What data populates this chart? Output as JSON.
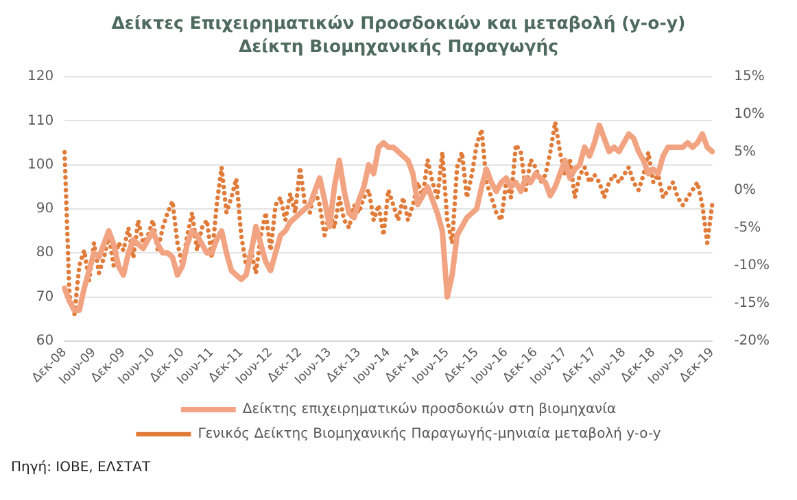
{
  "chart_data": {
    "type": "line",
    "title": "Δείκτες Επιχειρηματικών Προσδοκιών και μεταβολή (y-o-y) Δείκτη Βιομηχανικής Παραγωγής",
    "categories": [
      "Δεκ-08",
      null,
      null,
      null,
      null,
      null,
      "Ιουν-09",
      null,
      null,
      null,
      null,
      null,
      "Δεκ-09",
      null,
      null,
      null,
      null,
      null,
      "Ιουν-10",
      null,
      null,
      null,
      null,
      null,
      "Δεκ-10",
      null,
      null,
      null,
      null,
      null,
      "Ιουν-11",
      null,
      null,
      null,
      null,
      null,
      "Δεκ-11",
      null,
      null,
      null,
      null,
      null,
      "Ιουν-12",
      null,
      null,
      null,
      null,
      null,
      "Δεκ-12",
      null,
      null,
      null,
      null,
      null,
      "Ιουν-13",
      null,
      null,
      null,
      null,
      null,
      "Δεκ-13",
      null,
      null,
      null,
      null,
      null,
      "Ιουν-14",
      null,
      null,
      null,
      null,
      null,
      "Δεκ-14",
      null,
      null,
      null,
      null,
      null,
      "Ιουν-15",
      null,
      null,
      null,
      null,
      null,
      "Δεκ-15",
      null,
      null,
      null,
      null,
      null,
      "Ιουν-16",
      null,
      null,
      null,
      null,
      null,
      "Δεκ-16",
      null,
      null,
      null,
      null,
      null,
      "Ιουν-17",
      null,
      null,
      null,
      null,
      null,
      "Δεκ-17",
      null,
      null,
      null,
      null,
      null,
      "Ιουν-18",
      null,
      null,
      null,
      null,
      null,
      "Δεκ-18",
      null,
      null,
      null,
      null,
      null,
      "Ιουν-19",
      null,
      null,
      null,
      null,
      null,
      "Δεκ-19"
    ],
    "series": [
      {
        "name": "Δείκτης επιχειρηματικών προσδοκιών στη βιομηχανία",
        "color": "#f2a482",
        "line_style": "solid",
        "values": [
          72,
          69,
          67,
          67,
          72,
          76,
          80,
          79,
          82,
          85,
          82,
          77,
          75,
          80,
          83,
          82,
          81,
          83,
          85,
          82,
          80,
          80,
          79,
          75,
          77,
          82,
          85,
          84,
          82,
          80,
          80,
          83,
          85,
          80,
          76,
          75,
          74,
          75,
          80,
          86,
          82,
          78,
          76,
          80,
          84,
          85,
          87,
          88,
          89,
          90,
          91,
          94,
          97,
          92,
          86,
          95,
          101,
          94,
          89,
          88,
          92,
          95,
          100,
          98,
          104,
          105,
          104,
          104,
          103,
          102,
          101,
          98,
          91,
          93,
          95,
          92,
          89,
          85,
          70,
          75,
          84,
          86,
          88,
          89,
          90,
          95,
          99,
          96,
          94,
          96,
          97,
          95,
          96,
          94,
          97,
          96,
          98,
          97,
          96,
          93,
          95,
          98,
          101,
          97,
          99,
          100,
          104,
          102,
          105,
          109,
          106,
          103,
          104,
          103,
          105,
          107,
          106,
          103,
          101,
          98,
          99,
          98,
          102,
          104,
          104,
          104,
          104,
          105,
          104,
          105,
          107,
          104,
          103
        ]
      },
      {
        "name": "Γενικός Δείκτης Βιομηχανικής Παραγωγής-μηνιαία μεταβολή y-o-y",
        "color": "#e07b39",
        "line_style": "dotted",
        "axis": "y2",
        "values": [
          5,
          -14,
          -16.5,
          -10,
          -8,
          -12,
          -7,
          -11,
          -9,
          -6,
          -10,
          -7,
          -8,
          -5,
          -9,
          -4,
          -7,
          -6,
          -4,
          -8,
          -5,
          -3,
          -1.5,
          -7,
          -10,
          -6,
          -3,
          -8,
          -5,
          -4,
          -9,
          -2,
          3,
          -3,
          -1,
          1.5,
          -6,
          -10,
          -8,
          -11,
          -6,
          -3,
          -8,
          -2,
          -1,
          -4,
          -0.5,
          -3,
          3,
          -2,
          -3,
          0,
          -2,
          -6,
          -3,
          -5,
          -1,
          -4,
          -5,
          -2,
          -3,
          -1,
          0,
          -4,
          -2,
          -6,
          0,
          -2,
          -4,
          -1,
          -4,
          -2,
          1,
          -1,
          4,
          1,
          -1,
          5,
          -4,
          -7,
          3,
          5,
          -1,
          2,
          6,
          8,
          1,
          -1,
          -3,
          -4,
          1,
          -1,
          6,
          5,
          0,
          4,
          3,
          1,
          2,
          5,
          9,
          5,
          2,
          4,
          -1,
          2,
          3,
          1,
          2,
          1,
          -1,
          1,
          2,
          1,
          2,
          3,
          1,
          0,
          2,
          5,
          1,
          2,
          -1,
          0,
          1,
          -1,
          -2,
          -1,
          0,
          1,
          -2,
          -7,
          -2
        ]
      }
    ],
    "ylim": [
      60,
      120
    ],
    "yticks": [
      60,
      70,
      80,
      90,
      100,
      110,
      120
    ],
    "y2lim": [
      -20,
      15
    ],
    "y2ticks": [
      {
        "value": -20,
        "label": "-20%"
      },
      {
        "value": -15,
        "label": "-15%"
      },
      {
        "value": -10,
        "label": "-10%"
      },
      {
        "value": -5,
        "label": "-5%"
      },
      {
        "value": 0,
        "label": "0%"
      },
      {
        "value": 5,
        "label": "5%"
      },
      {
        "value": 10,
        "label": "10%"
      },
      {
        "value": 15,
        "label": "15%"
      }
    ],
    "grid": "y",
    "legend": "bottom",
    "marker": "none",
    "annotations": [
      "Πηγή: ΙΟΒΕ, ΕΛΣΤΑΤ"
    ]
  }
}
